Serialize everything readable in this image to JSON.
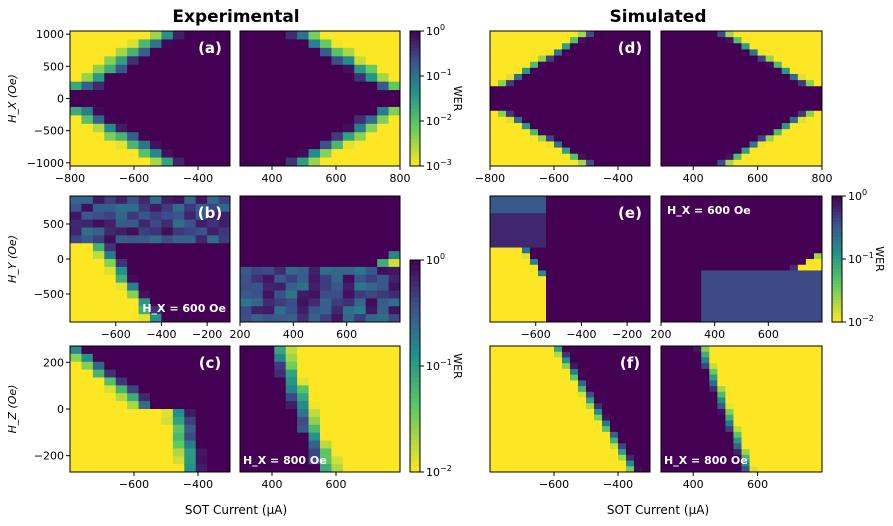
{
  "headings": {
    "experimental": "Experimental",
    "simulated": "Simulated"
  },
  "xlabel": "SOT Current (µA)",
  "colormap": {
    "dark": "#440154",
    "mid": "#21918c",
    "bright": "#fde725"
  },
  "colorbars": [
    {
      "label": "WER",
      "ticks": [
        "10^0",
        "10^-1",
        "10^-2",
        "10^-3"
      ],
      "range": [
        0.001,
        1
      ]
    },
    {
      "label": "WER",
      "ticks": [
        "10^0",
        "10^-1",
        "10^-2"
      ],
      "range": [
        0.01,
        1
      ]
    },
    {
      "label": "WER",
      "ticks": [
        "10^0",
        "10^-1",
        "10^-2"
      ],
      "range": [
        0.01,
        1
      ]
    }
  ],
  "chart_data": [
    {
      "type": "heatmap",
      "panel": "(a)",
      "group": "Experimental",
      "ylabel": "H_X (Oe)",
      "field_label": "",
      "xlim_left": [
        -800,
        -300
      ],
      "xlim_right": [
        300,
        800
      ],
      "ylim": [
        -1050,
        1050
      ],
      "yticks": [
        "1000",
        "500",
        "0",
        "−500",
        "−1000"
      ],
      "xticks_left": [
        "−800",
        "−600",
        "−400"
      ],
      "xticks_right": [
        "400",
        "600",
        "800"
      ],
      "description": "WER vs SOT current and H_X; yellow (low WER) switching lobes at large |H_X| and |I|"
    },
    {
      "type": "heatmap",
      "panel": "(b)",
      "group": "Experimental",
      "ylabel": "H_Y (Oe)",
      "field_label": "H_X = 600 Oe",
      "xlim_left": [
        -800,
        -100
      ],
      "xlim_right": [
        200,
        800
      ],
      "ylim": [
        -900,
        900
      ],
      "yticks": [
        "500",
        "0",
        "−500"
      ],
      "xticks_left": [
        "−600",
        "−400",
        "−200"
      ],
      "xticks_right": [
        "200",
        "400",
        "600"
      ],
      "description": "WER vs SOT current and H_Y at H_X = 600 Oe"
    },
    {
      "type": "heatmap",
      "panel": "(c)",
      "group": "Experimental",
      "ylabel": "H_Z (Oe)",
      "field_label": "H_X = 800 Oe",
      "xlim_left": [
        -800,
        -300
      ],
      "xlim_right": [
        300,
        800
      ],
      "ylim": [
        -270,
        270
      ],
      "yticks": [
        "200",
        "0",
        "−200"
      ],
      "xticks_left": [
        "−600",
        "−400"
      ],
      "xticks_right": [
        "400",
        "600"
      ],
      "description": "WER vs SOT current and H_Z at H_X = 800 Oe"
    },
    {
      "type": "heatmap",
      "panel": "(d)",
      "group": "Simulated",
      "ylabel": "",
      "field_label": "",
      "xlim_left": [
        -800,
        -300
      ],
      "xlim_right": [
        300,
        800
      ],
      "ylim": [
        -1050,
        1050
      ],
      "xticks_left": [
        "−800",
        "−600",
        "−400"
      ],
      "xticks_right": [
        "400",
        "600",
        "800"
      ],
      "description": "Simulated WER vs SOT current and H_X"
    },
    {
      "type": "heatmap",
      "panel": "(e)",
      "group": "Simulated",
      "ylabel": "",
      "field_label": "H_X = 600 Oe",
      "xlim_left": [
        -800,
        -100
      ],
      "xlim_right": [
        200,
        800
      ],
      "ylim": [
        -900,
        900
      ],
      "xticks_left": [
        "−600",
        "−400",
        "−200"
      ],
      "xticks_right": [
        "200",
        "400",
        "600"
      ],
      "description": "Simulated WER vs SOT current and H_Y at H_X = 600 Oe"
    },
    {
      "type": "heatmap",
      "panel": "(f)",
      "group": "Simulated",
      "ylabel": "",
      "field_label": "H_X = 800 Oe",
      "xlim_left": [
        -800,
        -300
      ],
      "xlim_right": [
        300,
        800
      ],
      "ylim": [
        -270,
        270
      ],
      "xticks_left": [
        "−600",
        "−400"
      ],
      "xticks_right": [
        "400",
        "600"
      ],
      "description": "Simulated WER vs SOT current and H_Z at H_X = 800 Oe"
    }
  ]
}
